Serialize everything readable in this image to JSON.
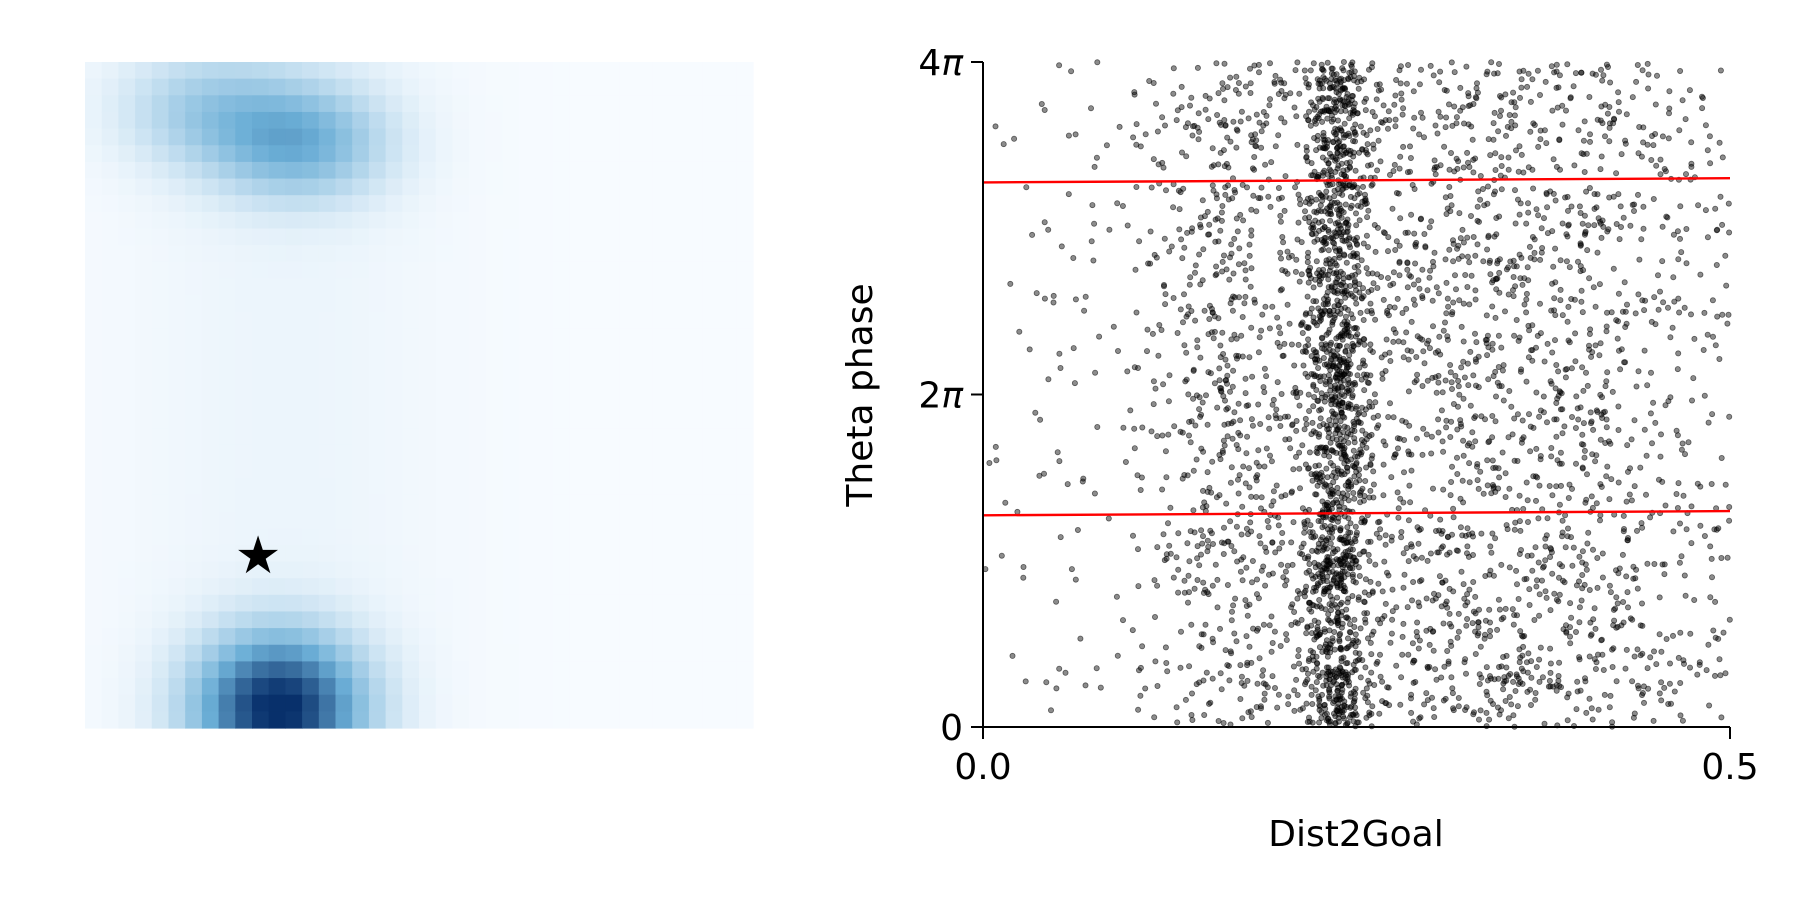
{
  "colors": {
    "heatmap_low": "#f7fbff",
    "heatmap_high": "#08306b",
    "star": "#ffa500",
    "points": "#000000",
    "reference_lines": "#ff0000",
    "axes": "#000000"
  },
  "chart_data": [
    {
      "type": "heatmap",
      "colormap": "Blues",
      "axes_visible": false,
      "grid": false,
      "hotspots": [
        {
          "x": 0.29,
          "y": 0.03,
          "intensity": 1.0
        },
        {
          "x": 0.32,
          "y": 0.88,
          "intensity": 0.45
        },
        {
          "x": 0.18,
          "y": 0.93,
          "intensity": 0.25
        }
      ],
      "goal_marker": {
        "icon": "star-icon",
        "x": 0.26,
        "y": 0.26
      }
    },
    {
      "type": "scatter",
      "xlabel": "Dist2Goal",
      "ylabel": "Theta phase",
      "xlim": [
        0.0,
        0.5
      ],
      "ylim": [
        0,
        12.566
      ],
      "xticks": [
        {
          "value": 0.0,
          "label": "0.0"
        },
        {
          "value": 0.5,
          "label": "0.5"
        }
      ],
      "yticks": [
        {
          "value": 0,
          "label": "0",
          "pi": false
        },
        {
          "value": 6.283,
          "label": "2",
          "pi": true
        },
        {
          "value": 12.566,
          "label": "4",
          "pi": true
        }
      ],
      "pi_symbol": "π",
      "grid": false,
      "point_count": 4200,
      "density_bands": [
        {
          "x": 0.237,
          "width": 0.012,
          "weight": 3.2
        },
        {
          "x": 0.17,
          "width": 0.03,
          "weight": 1.4
        },
        {
          "x": 0.3,
          "width": 0.04,
          "weight": 1.6
        },
        {
          "x": 0.39,
          "width": 0.035,
          "weight": 1.0
        },
        {
          "x": 0.46,
          "width": 0.05,
          "weight": 0.6
        },
        {
          "x": 0.05,
          "width": 0.04,
          "weight": 0.25
        }
      ],
      "reference_lines": [
        {
          "y_start": 4.0,
          "y_end": 4.08
        },
        {
          "y_start": 10.29,
          "y_end": 10.37
        }
      ]
    }
  ]
}
